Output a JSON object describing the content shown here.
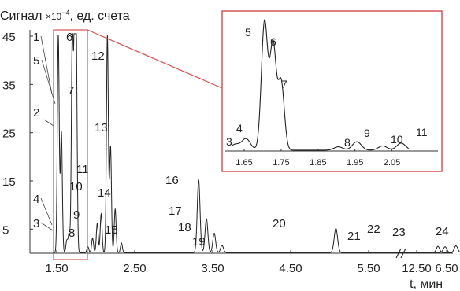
{
  "chart_data": {
    "type": "line",
    "title": "",
    "ylabel_parts": [
      "Сигнал ",
      "×10",
      "−4",
      ", ед. счета"
    ],
    "xlabel": "t, мин",
    "x_ticks": [
      "1.50",
      "2.50",
      "3.50",
      "4.50",
      "5.50",
      "6.50",
      "12.50"
    ],
    "y_ticks": [
      "45",
      "35",
      "25",
      "15",
      "5"
    ],
    "x_break_after": 7.1,
    "break_resume": 12.0,
    "ylim": [
      0,
      45
    ],
    "peaks": [
      {
        "label": "1",
        "t": 1.52,
        "h": 45
      },
      {
        "label": "2",
        "t": 1.56,
        "h": 25
      },
      {
        "label": "3",
        "t": 1.63,
        "h": 2.5
      },
      {
        "label": "4",
        "t": 1.66,
        "h": 4
      },
      {
        "label": "5",
        "t": 1.7,
        "h": 45
      },
      {
        "label": "6",
        "t": 1.73,
        "h": 45
      },
      {
        "label": "7",
        "t": 1.75,
        "h": 40
      },
      {
        "label": "8",
        "t": 1.9,
        "h": 1.2
      },
      {
        "label": "9",
        "t": 1.96,
        "h": 3
      },
      {
        "label": "10",
        "t": 2.02,
        "h": 6
      },
      {
        "label": "11",
        "t": 2.07,
        "h": 8
      },
      {
        "label": "12",
        "t": 2.15,
        "h": 45
      },
      {
        "label": "13",
        "t": 2.19,
        "h": 22
      },
      {
        "label": "14",
        "t": 2.25,
        "h": 9
      },
      {
        "label": "15",
        "t": 2.33,
        "h": 2
      },
      {
        "label": "16",
        "t": 3.32,
        "h": 15
      },
      {
        "label": "17",
        "t": 3.42,
        "h": 7
      },
      {
        "label": "18",
        "t": 3.52,
        "h": 4
      },
      {
        "label": "19",
        "t": 3.62,
        "h": 1.5
      },
      {
        "label": "20",
        "t": 5.08,
        "h": 5
      },
      {
        "label": "21",
        "t": 6.48,
        "h": 1.2
      },
      {
        "label": "22",
        "t": 6.62,
        "h": 1.4
      },
      {
        "label": "23",
        "t": 6.95,
        "h": 1.2
      },
      {
        "label": "24",
        "t": 12.8,
        "h": 1.3
      }
    ],
    "inset": {
      "x_ticks": [
        "1.65",
        "1.75",
        "1.85",
        "1.95",
        "2.05"
      ],
      "xlim": [
        1.615,
        2.095
      ],
      "peaks": [
        {
          "label": "3",
          "t": 1.625,
          "h": 2
        },
        {
          "label": "4",
          "t": 1.655,
          "h": 4
        },
        {
          "label": "5",
          "t": 1.705,
          "h": 45
        },
        {
          "label": "6",
          "t": 1.728,
          "h": 37
        },
        {
          "label": "7",
          "t": 1.75,
          "h": 24
        },
        {
          "label": "8",
          "t": 1.905,
          "h": 1.2
        },
        {
          "label": "9",
          "t": 1.955,
          "h": 3
        },
        {
          "label": "10",
          "t": 2.025,
          "h": 1.5
        },
        {
          "label": "11",
          "t": 2.075,
          "h": 2.5
        }
      ]
    }
  }
}
